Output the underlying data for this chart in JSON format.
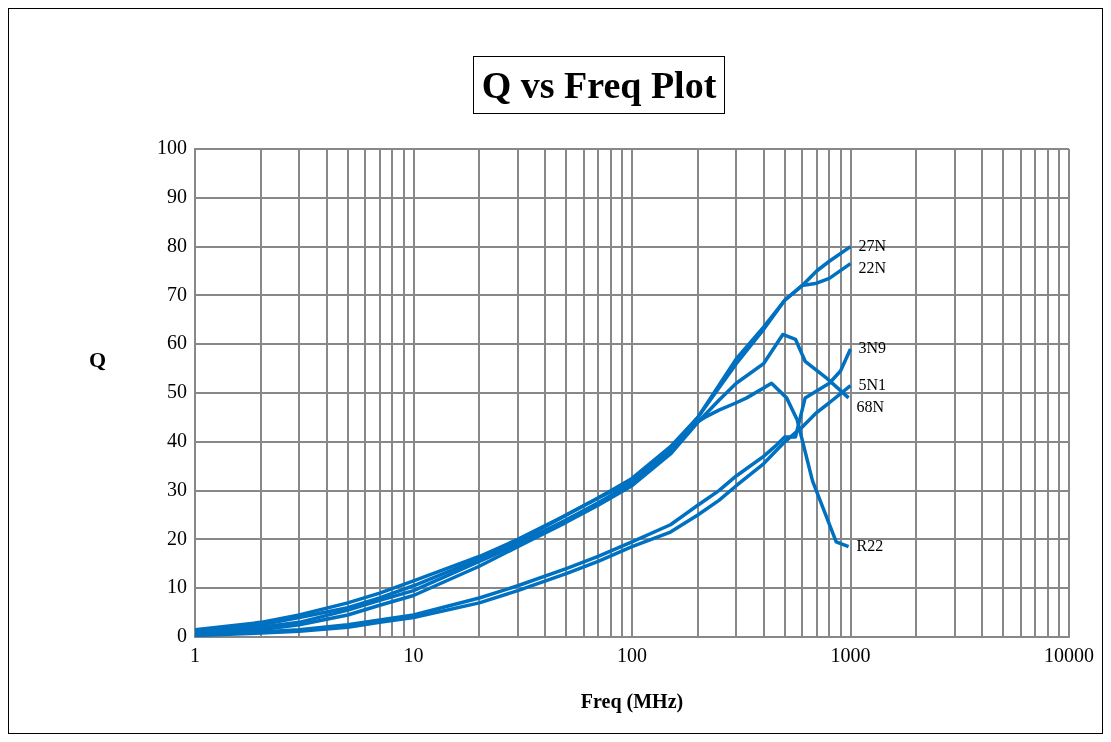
{
  "chart_data": {
    "type": "line",
    "title": "Q vs Freq Plot",
    "xlabel": "Freq (MHz)",
    "ylabel": "Q",
    "log": "x",
    "grid": true,
    "legend": false,
    "marker": "none",
    "line_style": "solid",
    "xlim": [
      1,
      10000
    ],
    "ylim": [
      0,
      100
    ],
    "xticks": [
      1,
      {
        "value": 2,
        "label": null
      },
      {
        "value": 3,
        "label": null
      },
      {
        "value": 4,
        "label": null
      },
      {
        "value": 5,
        "label": null
      },
      {
        "value": 6,
        "label": null
      },
      {
        "value": 7,
        "label": null
      },
      {
        "value": 8,
        "label": null
      },
      {
        "value": 9,
        "label": null
      },
      10,
      {
        "value": 20,
        "label": null
      },
      {
        "value": 30,
        "label": null
      },
      {
        "value": 40,
        "label": null
      },
      {
        "value": 50,
        "label": null
      },
      {
        "value": 60,
        "label": null
      },
      {
        "value": 70,
        "label": null
      },
      {
        "value": 80,
        "label": null
      },
      {
        "value": 90,
        "label": null
      },
      100,
      {
        "value": 200,
        "label": null
      },
      {
        "value": 300,
        "label": null
      },
      {
        "value": 400,
        "label": null
      },
      {
        "value": 500,
        "label": null
      },
      {
        "value": 600,
        "label": null
      },
      {
        "value": 700,
        "label": null
      },
      {
        "value": 800,
        "label": null
      },
      {
        "value": 900,
        "label": null
      },
      1000,
      {
        "value": 2000,
        "label": null
      },
      {
        "value": 3000,
        "label": null
      },
      {
        "value": 4000,
        "label": null
      },
      {
        "value": 5000,
        "label": null
      },
      {
        "value": 6000,
        "label": null
      },
      {
        "value": 7000,
        "label": null
      },
      {
        "value": 8000,
        "label": null
      },
      {
        "value": 9000,
        "label": null
      },
      10000
    ],
    "yticks": [
      0,
      10,
      20,
      30,
      40,
      50,
      60,
      70,
      80,
      90,
      100
    ],
    "series": [
      {
        "name": "27N",
        "color": "#0070c0",
        "x": [
          1,
          2,
          3,
          5,
          7,
          10,
          20,
          30,
          50,
          70,
          100,
          150,
          200,
          300,
          400,
          500,
          600,
          700,
          800,
          1000
        ],
        "values": [
          1,
          2.5,
          4,
          6,
          8,
          10.5,
          16,
          19.5,
          25,
          28.5,
          32.5,
          39,
          45,
          57,
          63.5,
          69,
          72,
          75,
          77,
          80
        ]
      },
      {
        "name": "22N",
        "color": "#0070c0",
        "x": [
          1,
          2,
          3,
          5,
          7,
          10,
          20,
          30,
          50,
          70,
          100,
          150,
          200,
          300,
          400,
          500,
          600,
          700,
          800,
          1000
        ],
        "values": [
          1.5,
          3,
          4.5,
          7,
          9,
          11.5,
          16.5,
          20,
          25,
          28.5,
          32,
          38.5,
          45,
          56,
          63,
          69,
          72,
          72.5,
          73.5,
          76.5
        ]
      },
      {
        "name": "3N9",
        "color": "#0070c0",
        "x": [
          1,
          2,
          3,
          5,
          7,
          10,
          20,
          30,
          50,
          70,
          100,
          150,
          200,
          250,
          300,
          400,
          450,
          500,
          560,
          620,
          800,
          900,
          1000
        ],
        "values": [
          0.5,
          1,
          1.5,
          2.5,
          3.5,
          4.5,
          8,
          10.5,
          14,
          16.5,
          19.5,
          23,
          27,
          30,
          33,
          37,
          39,
          41,
          41,
          49,
          52,
          54.5,
          59
        ]
      },
      {
        "name": "5N1",
        "color": "#0070c0",
        "x": [
          1,
          2,
          3,
          5,
          7,
          10,
          20,
          30,
          50,
          70,
          100,
          150,
          200,
          250,
          300,
          400,
          500,
          600,
          700,
          800,
          1000
        ],
        "values": [
          0.3,
          0.8,
          1.2,
          2,
          3,
          4,
          7,
          9.5,
          13,
          15.5,
          18.5,
          21.5,
          25,
          28,
          31,
          35.5,
          40,
          43,
          46,
          48,
          51.5
        ]
      },
      {
        "name": "68N",
        "color": "#0070c0",
        "x": [
          1,
          2,
          3,
          5,
          7,
          10,
          20,
          30,
          50,
          70,
          100,
          150,
          200,
          250,
          300,
          400,
          490,
          560,
          620,
          780,
          980
        ],
        "values": [
          0.5,
          1.5,
          2.5,
          4.5,
          6.5,
          8.5,
          14.5,
          18.5,
          23.5,
          27,
          31,
          37.5,
          44,
          48.5,
          52,
          56,
          62,
          61,
          56.5,
          53,
          49
        ]
      },
      {
        "name": "R22",
        "color": "#0070c0",
        "x": [
          1,
          2,
          3,
          5,
          7,
          10,
          20,
          30,
          50,
          70,
          100,
          150,
          183,
          215,
          250,
          300,
          335,
          435,
          510,
          570,
          670,
          860,
          980
        ],
        "values": [
          1,
          2,
          3,
          5.5,
          7.5,
          9.5,
          15.5,
          19,
          24,
          27.5,
          31.5,
          38,
          43,
          45,
          46.5,
          48,
          49,
          52,
          49,
          44.5,
          32,
          19.5,
          18.5
        ]
      }
    ]
  }
}
